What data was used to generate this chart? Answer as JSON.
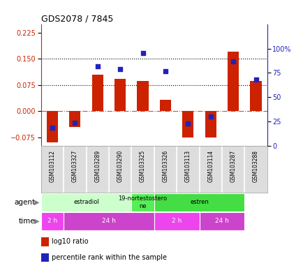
{
  "title": "GDS2078 / 7845",
  "samples": [
    "GSM103112",
    "GSM103327",
    "GSM103289",
    "GSM103290",
    "GSM103325",
    "GSM103326",
    "GSM103113",
    "GSM103114",
    "GSM103287",
    "GSM103288"
  ],
  "log10_ratio": [
    -0.09,
    -0.045,
    0.105,
    0.093,
    0.086,
    0.032,
    -0.075,
    -0.075,
    0.17,
    0.086
  ],
  "percentile": [
    0.19,
    0.24,
    0.82,
    0.79,
    0.95,
    0.77,
    0.23,
    0.3,
    0.87,
    0.68
  ],
  "bar_color": "#cc2200",
  "dot_color": "#2222bb",
  "ylim_left": [
    -0.1,
    0.25
  ],
  "ylim_right": [
    0,
    1.25
  ],
  "yticks_left": [
    -0.075,
    0,
    0.075,
    0.15,
    0.225
  ],
  "yticks_right": [
    0,
    0.25,
    0.5,
    0.75,
    1.0
  ],
  "ytick_labels_right": [
    "0",
    "25",
    "50",
    "75",
    "100%"
  ],
  "hlines": [
    0.075,
    0.15
  ],
  "zero_line": 0.0,
  "agent_groups": [
    {
      "label": "estradiol",
      "start": 0,
      "end": 4,
      "color": "#ccffcc"
    },
    {
      "label": "19-nortestostero\nne",
      "start": 4,
      "end": 5,
      "color": "#55ee55"
    },
    {
      "label": "estren",
      "start": 5,
      "end": 9,
      "color": "#44dd44"
    }
  ],
  "time_groups": [
    {
      "label": "2 h",
      "start": 0,
      "end": 1,
      "color": "#ee44ee"
    },
    {
      "label": "24 h",
      "start": 1,
      "end": 5,
      "color": "#cc44cc"
    },
    {
      "label": "2 h",
      "start": 5,
      "end": 7,
      "color": "#ee44ee"
    },
    {
      "label": "24 h",
      "start": 7,
      "end": 9,
      "color": "#cc44cc"
    }
  ],
  "legend_bar_label": "log10 ratio",
  "legend_dot_label": "percentile rank within the sample",
  "agent_label": "agent",
  "time_label": "time",
  "background_color": "#ffffff",
  "sample_bg": "#dddddd",
  "border_color": "#999999"
}
